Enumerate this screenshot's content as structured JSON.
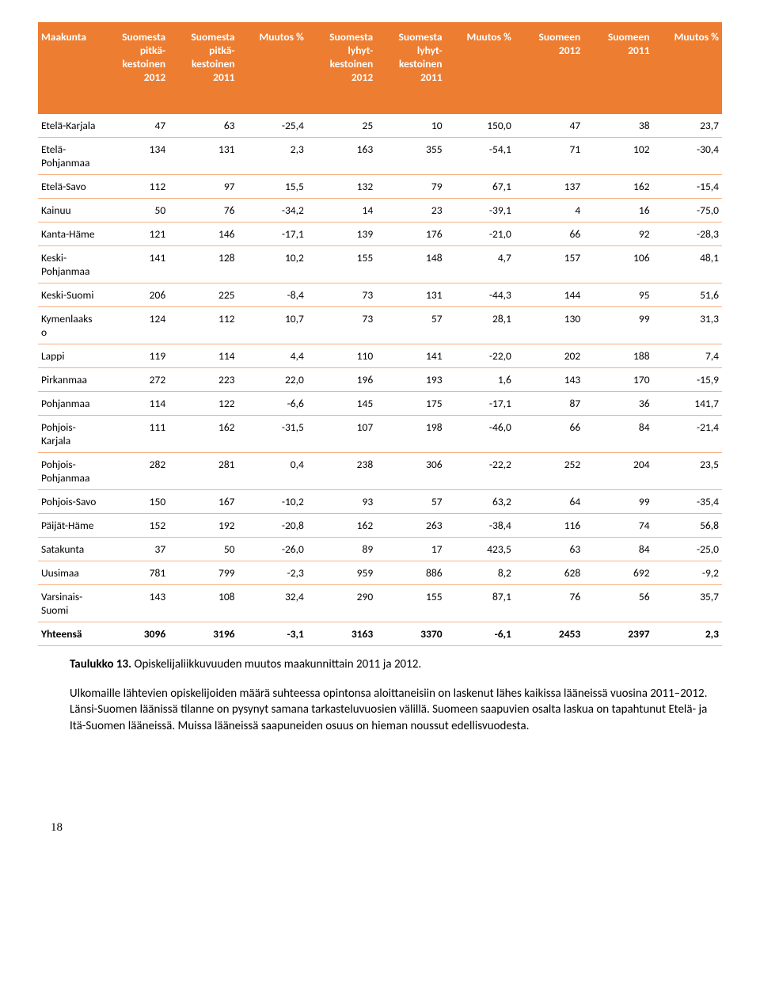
{
  "header_bg": "#ed7d31",
  "header_fg": "#ffffff",
  "row_border": "#f7b183",
  "columns": [
    "Maakunta",
    "Suomesta pitkä-kestoinen 2012",
    "Suomesta pitkä-kestoinen 2011",
    "Muutos %",
    "Suomesta lyhyt-kestoinen 2012",
    "Suomesta lyhyt-kestoinen 2011",
    "Muutos %",
    "Suomeen 2012",
    "Suomeen 2011",
    "Muutos %"
  ],
  "rows": [
    [
      "Etelä-Karjala",
      "47",
      "63",
      "-25,4",
      "25",
      "10",
      "150,0",
      "47",
      "38",
      "23,7"
    ],
    [
      "Etelä-Pohjanmaa",
      "134",
      "131",
      "2,3",
      "163",
      "355",
      "-54,1",
      "71",
      "102",
      "-30,4"
    ],
    [
      "Etelä-Savo",
      "112",
      "97",
      "15,5",
      "132",
      "79",
      "67,1",
      "137",
      "162",
      "-15,4"
    ],
    [
      "Kainuu",
      "50",
      "76",
      "-34,2",
      "14",
      "23",
      "-39,1",
      "4",
      "16",
      "-75,0"
    ],
    [
      "Kanta-Häme",
      "121",
      "146",
      "-17,1",
      "139",
      "176",
      "-21,0",
      "66",
      "92",
      "-28,3"
    ],
    [
      "Keski-Pohjanmaa",
      "141",
      "128",
      "10,2",
      "155",
      "148",
      "4,7",
      "157",
      "106",
      "48,1"
    ],
    [
      "Keski-Suomi",
      "206",
      "225",
      "-8,4",
      "73",
      "131",
      "-44,3",
      "144",
      "95",
      "51,6"
    ],
    [
      "Kymenlaakso",
      "124",
      "112",
      "10,7",
      "73",
      "57",
      "28,1",
      "130",
      "99",
      "31,3"
    ],
    [
      "Lappi",
      "119",
      "114",
      "4,4",
      "110",
      "141",
      "-22,0",
      "202",
      "188",
      "7,4"
    ],
    [
      "Pirkanmaa",
      "272",
      "223",
      "22,0",
      "196",
      "193",
      "1,6",
      "143",
      "170",
      "-15,9"
    ],
    [
      "Pohjanmaa",
      "114",
      "122",
      "-6,6",
      "145",
      "175",
      "-17,1",
      "87",
      "36",
      "141,7"
    ],
    [
      "Pohjois-Karjala",
      "111",
      "162",
      "-31,5",
      "107",
      "198",
      "-46,0",
      "66",
      "84",
      "-21,4"
    ],
    [
      "Pohjois-Pohjanmaa",
      "282",
      "281",
      "0,4",
      "238",
      "306",
      "-22,2",
      "252",
      "204",
      "23,5"
    ],
    [
      "Pohjois-Savo",
      "150",
      "167",
      "-10,2",
      "93",
      "57",
      "63,2",
      "64",
      "99",
      "-35,4"
    ],
    [
      "Päijät-Häme",
      "152",
      "192",
      "-20,8",
      "162",
      "263",
      "-38,4",
      "116",
      "74",
      "56,8"
    ],
    [
      "Satakunta",
      "37",
      "50",
      "-26,0",
      "89",
      "17",
      "423,5",
      "63",
      "84",
      "-25,0"
    ],
    [
      "Uusimaa",
      "781",
      "799",
      "-2,3",
      "959",
      "886",
      "8,2",
      "628",
      "692",
      "-9,2"
    ],
    [
      "Varsinais-Suomi",
      "143",
      "108",
      "32,4",
      "290",
      "155",
      "87,1",
      "76",
      "56",
      "35,7"
    ],
    [
      "Yhteensä",
      "3096",
      "3196",
      "-3,1",
      "3163",
      "3370",
      "-6,1",
      "2453",
      "2397",
      "2,3"
    ]
  ],
  "caption_bold": "Taulukko 13.",
  "caption_rest": " Opiskelijaliikkuvuuden muutos maakunnittain 2011 ja 2012.",
  "paragraph": "Ulkomaille lähtevien opiskelijoiden määrä suhteessa opintonsa aloittaneisiin on laskenut lähes kaikissa lääneissä vuosina 2011–2012. Länsi-Suomen läänissä tilanne on pysynyt samana tarkasteluvuosien välillä. Suomeen saapuvien osalta laskua on tapahtunut Etelä- ja Itä-Suomen lääneissä. Muissa lääneissä saapuneiden osuus on hieman noussut edellisvuodesta.",
  "page_number": "18"
}
